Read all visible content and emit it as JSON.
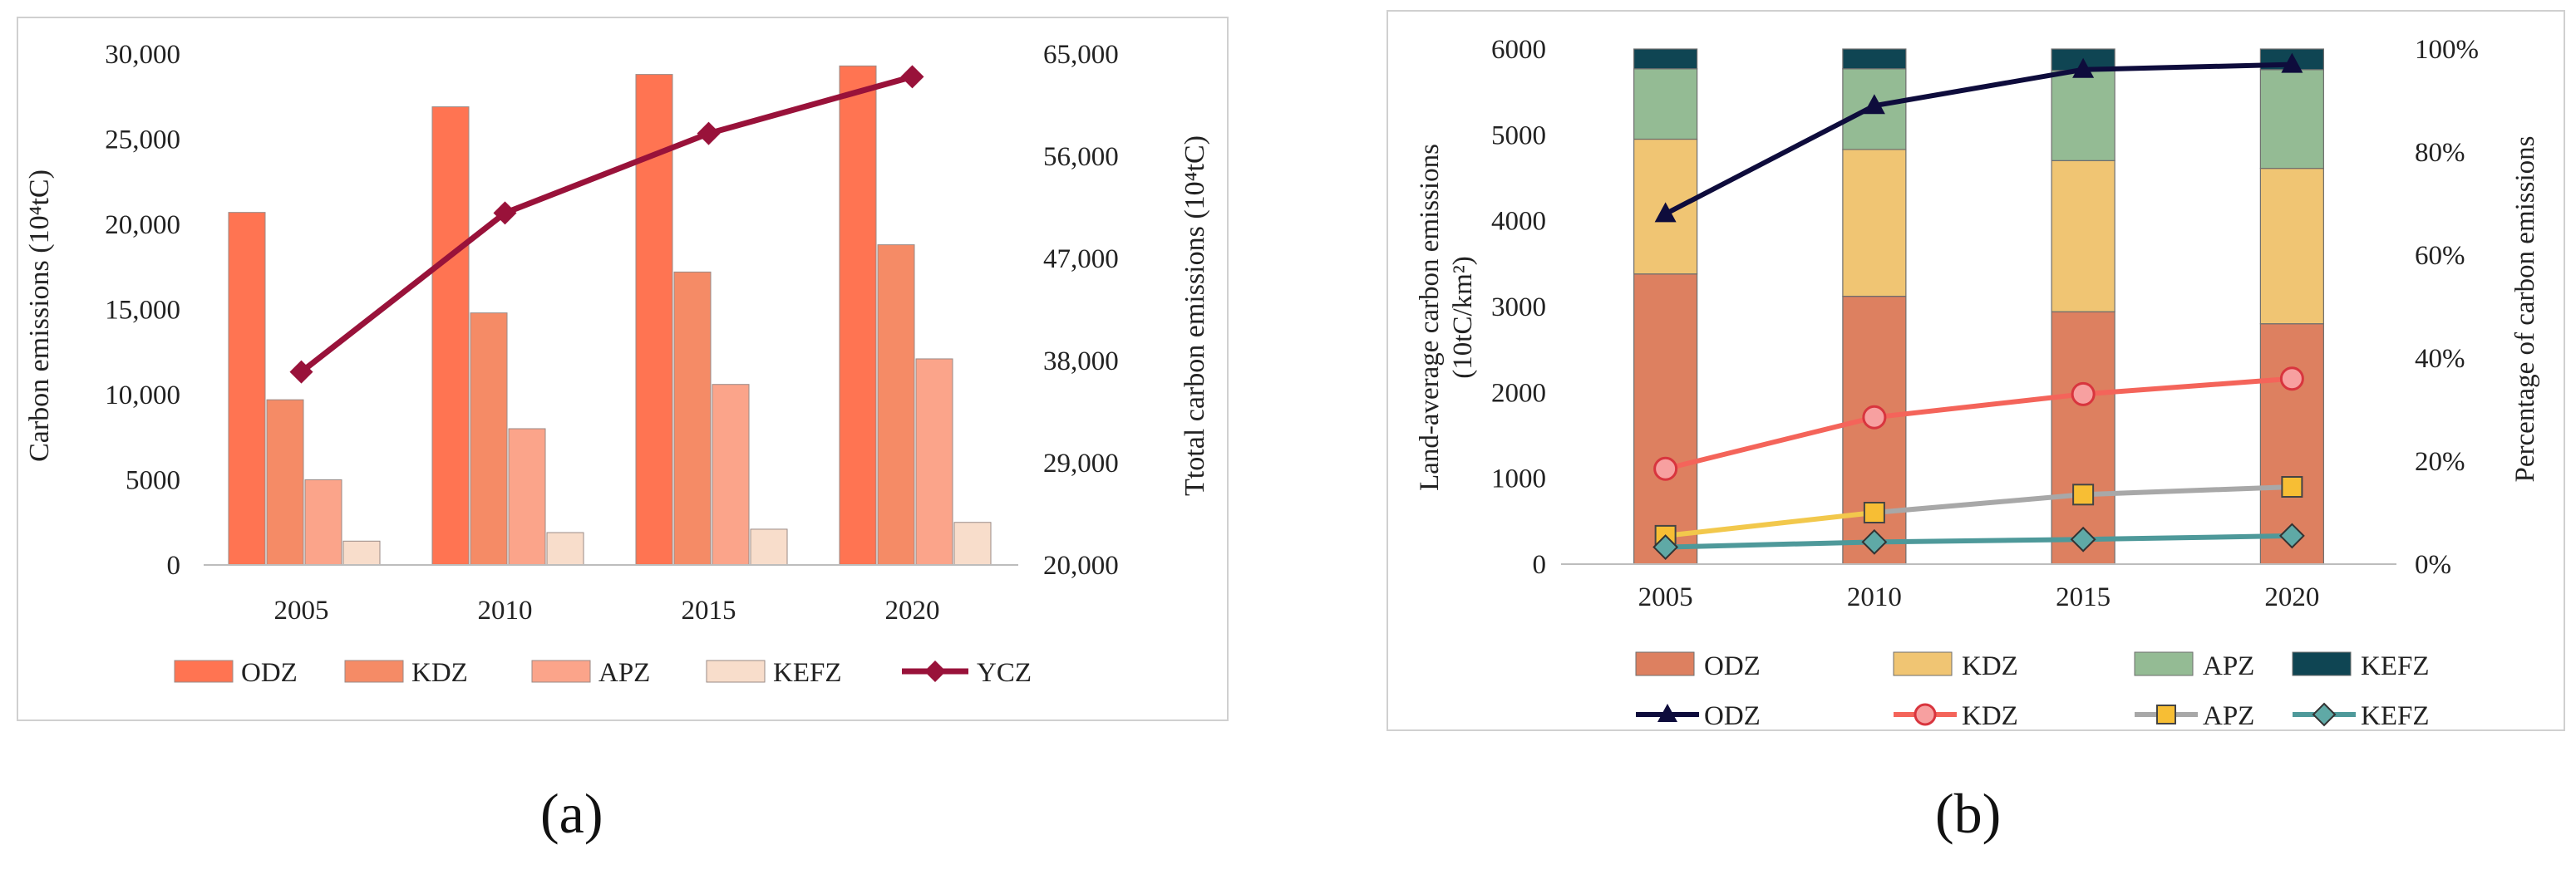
{
  "panel_labels": {
    "a": "(a)",
    "b": "(b)"
  },
  "colors": {
    "odz_bar": "#FF7452",
    "kdz_bar": "#F58B66",
    "apz_bar": "#FBA48A",
    "kefz_bar": "#F8DDCB",
    "ycz_line": "#99123A",
    "b_odz": "#DD8060",
    "b_kdz": "#F0C573",
    "b_apz": "#94BB94",
    "b_kefz": "#0F4553",
    "b_line_odz": "#0E0C3C",
    "b_line_kdz": "#F4645A",
    "b_line_apz": "#A8A8A8",
    "b_marker_apz": "#F7BE34",
    "b_line_kefz": "#4E999A",
    "b_line_apz_start": "#F2C84C"
  },
  "chart_data": [
    {
      "id": "a",
      "type": "bar+line",
      "categories": [
        "2005",
        "2010",
        "2015",
        "2020"
      ],
      "series": [
        {
          "name": "ODZ",
          "type": "bar",
          "values": [
            20700,
            26900,
            28800,
            29300
          ]
        },
        {
          "name": "KDZ",
          "type": "bar",
          "values": [
            9700,
            14800,
            17200,
            18800
          ]
        },
        {
          "name": "APZ",
          "type": "bar",
          "values": [
            5000,
            8000,
            10600,
            12100
          ]
        },
        {
          "name": "KEFZ",
          "type": "bar",
          "values": [
            1400,
            1900,
            2100,
            2500
          ]
        },
        {
          "name": "YCZ",
          "type": "line",
          "axis": "right",
          "values": [
            37000,
            51000,
            58000,
            63000
          ]
        }
      ],
      "y_left": {
        "label": "Carbon emissions (10⁴tC)",
        "range": [
          0,
          30000
        ],
        "ticks": [
          "0",
          "5000",
          "10,000",
          "15,000",
          "20,000",
          "25,000",
          "30,000"
        ]
      },
      "y_right": {
        "label": "Ttotal carbon emissions (10⁴tC)",
        "range": [
          20000,
          65000
        ],
        "ticks": [
          "20,000",
          "29,000",
          "38,000",
          "47,000",
          "56,000",
          "65,000"
        ]
      },
      "legend": [
        "ODZ",
        "KDZ",
        "APZ",
        "KEFZ",
        "YCZ"
      ],
      "legend_position": "bottom"
    },
    {
      "id": "b",
      "type": "stacked-bar+line",
      "categories": [
        "2005",
        "2010",
        "2015",
        "2020"
      ],
      "bar_series": [
        {
          "name": "ODZ",
          "values": [
            3380,
            3120,
            2940,
            2800
          ]
        },
        {
          "name": "KDZ",
          "values": [
            1570,
            1710,
            1760,
            1810
          ]
        },
        {
          "name": "APZ",
          "values": [
            820,
            940,
            1050,
            1150
          ]
        },
        {
          "name": "KEFZ",
          "values": [
            230,
            230,
            250,
            240
          ]
        }
      ],
      "line_series": [
        {
          "name": "ODZ",
          "marker": "triangle",
          "values": [
            68,
            89,
            96,
            97
          ]
        },
        {
          "name": "KDZ",
          "marker": "circle",
          "values": [
            18.5,
            28.5,
            33,
            36
          ]
        },
        {
          "name": "APZ",
          "marker": "square",
          "values": [
            5.5,
            10,
            13.5,
            15
          ]
        },
        {
          "name": "KEFZ",
          "marker": "diamond",
          "values": [
            3.3,
            4.3,
            4.8,
            5.5
          ]
        }
      ],
      "y_left": {
        "label_line1": "Land-average carbon emissions",
        "label_line2": "(10tC/km²)",
        "range": [
          0,
          6000
        ],
        "ticks": [
          "0",
          "1000",
          "2000",
          "3000",
          "4000",
          "5000",
          "6000"
        ]
      },
      "y_right": {
        "label": "Percentage of carbon emissions",
        "range": [
          0,
          100
        ],
        "ticks": [
          "0%",
          "20%",
          "40%",
          "60%",
          "80%",
          "100%"
        ]
      },
      "legend_bars": [
        "ODZ",
        "KDZ",
        "APZ",
        "KEFZ"
      ],
      "legend_lines": [
        "ODZ",
        "KDZ",
        "APZ",
        "KEFZ"
      ],
      "legend_position": "bottom"
    }
  ]
}
